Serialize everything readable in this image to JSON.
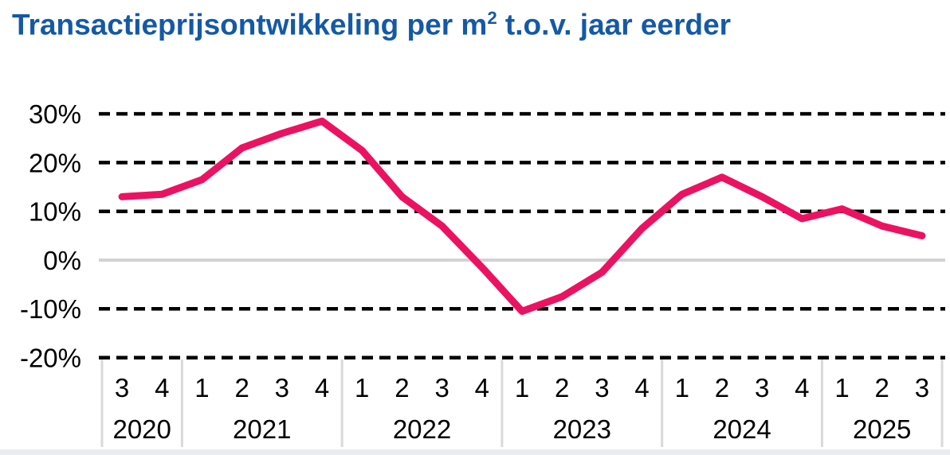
{
  "title": {
    "text_before_sup": "Transactieprijsontwikkeling per m",
    "sup": "2",
    "text_after_sup": " t.o.v. jaar eerder",
    "color": "#1559A5"
  },
  "chart_data": {
    "type": "line",
    "title": "Transactieprijsontwikkeling per m2 t.o.v. jaar eerder",
    "x": [
      "2020Q3",
      "2020Q4",
      "2021Q1",
      "2021Q2",
      "2021Q3",
      "2021Q4",
      "2022Q1",
      "2022Q2",
      "2022Q3",
      "2022Q4",
      "2023Q1",
      "2023Q2",
      "2023Q3",
      "2023Q4",
      "2024Q1",
      "2024Q2",
      "2024Q3",
      "2024Q4",
      "2025Q1",
      "2025Q2",
      "2025Q3"
    ],
    "quarter_labels": [
      "3",
      "4",
      "1",
      "2",
      "3",
      "4",
      "1",
      "2",
      "3",
      "4",
      "1",
      "2",
      "3",
      "4",
      "1",
      "2",
      "3",
      "4",
      "1",
      "2",
      "3"
    ],
    "year_groups": [
      {
        "label": "2020",
        "quarters": 2
      },
      {
        "label": "2021",
        "quarters": 4
      },
      {
        "label": "2022",
        "quarters": 4
      },
      {
        "label": "2023",
        "quarters": 4
      },
      {
        "label": "2024",
        "quarters": 4
      },
      {
        "label": "2025",
        "quarters": 3
      }
    ],
    "series": [
      {
        "name": "Transactieprijsontwikkeling per m2 t.o.v. jaar eerder (%)",
        "values": [
          13,
          13.5,
          16.5,
          23,
          26,
          28.5,
          22.5,
          13,
          7,
          -1.5,
          -10.5,
          -7.5,
          -2.5,
          6.5,
          13.5,
          17,
          13,
          8.5,
          10.5,
          7,
          5
        ]
      }
    ],
    "ylabel": "",
    "xlabel": "",
    "ytick_labels": [
      "30%",
      "20%",
      "10%",
      "0%",
      "-10%",
      "-20%"
    ],
    "ytick_values": [
      30,
      20,
      10,
      0,
      -10,
      -20
    ],
    "ylim": [
      -20,
      32
    ],
    "grid": "horizontal dashed black lines at ticks, solid light gray line at 0%",
    "legend": "none",
    "line_color": "#EC1262",
    "zero_line_color": "#D2D2D2",
    "gridline_color": "#000000",
    "separator_color": "#D9D9D9",
    "axis_text_color": "#000000",
    "bottom_strip_color": "#E9EDF2"
  }
}
